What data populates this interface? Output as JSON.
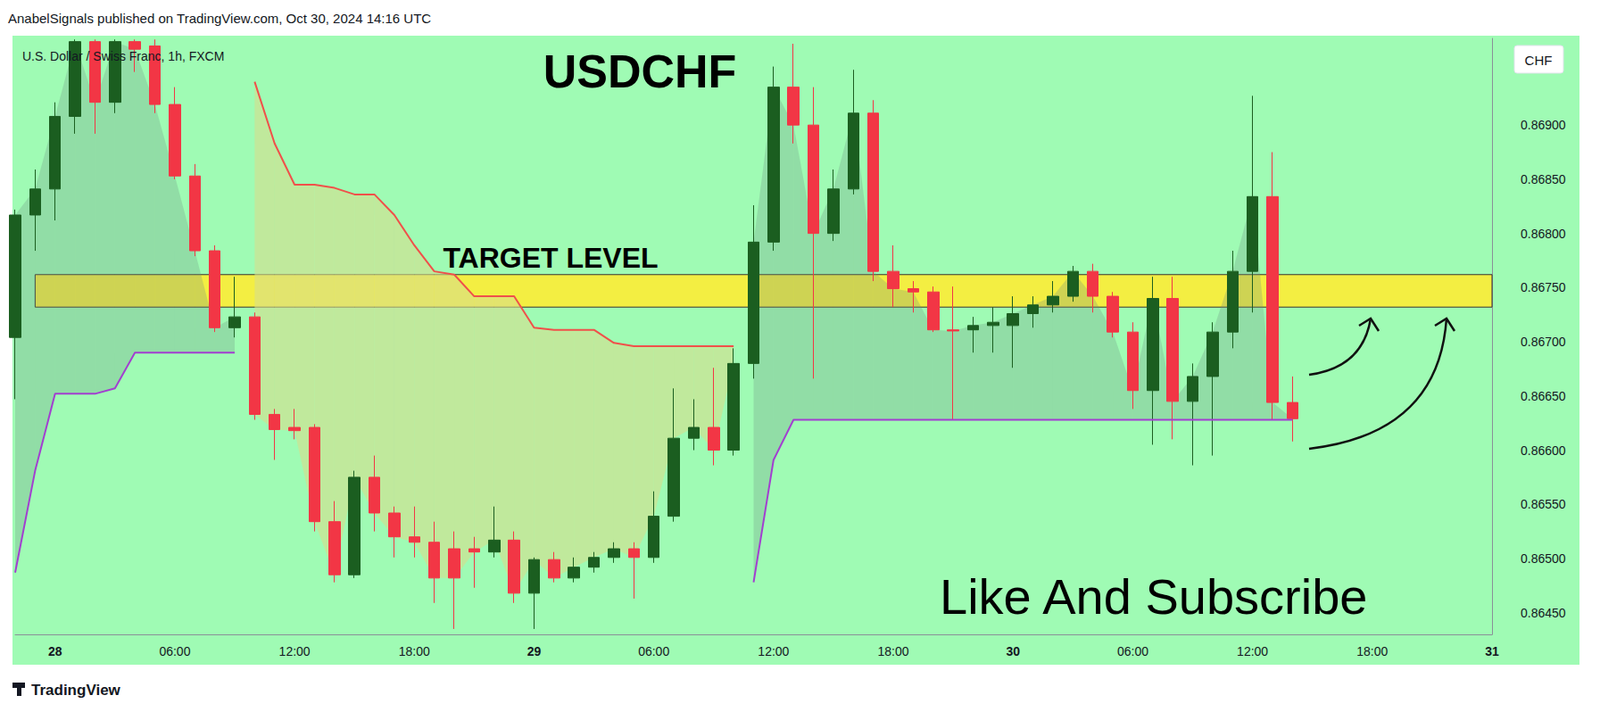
{
  "header": "AnabelSignals published on TradingView.com, Oct 30, 2024 14:16 UTC",
  "footer": "TradingView",
  "chart_data": {
    "type": "candlestick",
    "title": "USDCHF",
    "subtitle": "U.S. Dollar / Swiss Franc, 1h, FXCM",
    "currency": "CHF",
    "annotations": [
      "Like And Subscribe"
    ],
    "target_level": {
      "label": "TARGET LEVEL",
      "low": 0.86732,
      "high": 0.86762
    },
    "categories": [
      null,
      null,
      "28",
      null,
      null,
      null,
      null,
      null,
      "06:00",
      null,
      null,
      null,
      null,
      null,
      "12:00",
      null,
      null,
      null,
      null,
      null,
      "18:00",
      null,
      null,
      null,
      null,
      null,
      "29",
      null,
      null,
      null,
      null,
      null,
      "06:00",
      null,
      null,
      null,
      null,
      null,
      "12:00",
      null,
      null,
      null,
      null,
      null,
      "18:00",
      null,
      null,
      null,
      null,
      null,
      "30",
      null,
      null,
      null,
      null,
      null,
      "06:00",
      null,
      null,
      null,
      null,
      null,
      "12:00",
      null,
      null,
      null,
      null,
      null,
      "18:00",
      null,
      null,
      null,
      null,
      null,
      "31"
    ],
    "open": [
      0.86704,
      0.86817,
      0.86841,
      0.86908,
      0.86977,
      0.86921,
      0.86977,
      0.86973,
      0.86919,
      0.86853,
      0.86784,
      0.86713,
      0.86723,
      0.86633,
      0.86621,
      0.86621,
      0.86534,
      0.86485,
      0.86575,
      0.86542,
      0.8652,
      0.86515,
      0.86509,
      0.86509,
      0.86506,
      0.86517,
      0.86468,
      0.86499,
      0.86482,
      0.86492,
      0.86501,
      0.86509,
      0.86501,
      0.86539,
      0.86611,
      0.86621,
      0.866,
      0.8668,
      0.86792,
      0.86935,
      0.869,
      0.868,
      0.86841,
      0.86911,
      0.86765,
      0.86749,
      0.86746,
      0.86711,
      0.86711,
      0.86715,
      0.86715,
      0.86726,
      0.86734,
      0.86742,
      0.86765,
      0.86742,
      0.86709,
      0.86655,
      0.8674,
      0.86645,
      0.86668,
      0.86709,
      0.86765,
      0.86834,
      0.86644,
      null,
      null,
      null,
      null,
      null,
      null,
      null,
      null,
      null,
      null
    ],
    "close": [
      0.86817,
      0.86841,
      0.86908,
      0.86977,
      0.86921,
      0.86977,
      0.8697,
      0.86919,
      0.86853,
      0.86784,
      0.86713,
      0.86723,
      0.86633,
      0.86619,
      0.86618,
      0.86534,
      0.86485,
      0.86575,
      0.86542,
      0.8652,
      0.86515,
      0.86482,
      0.86482,
      0.86506,
      0.86517,
      0.86468,
      0.86499,
      0.86482,
      0.86492,
      0.86501,
      0.86509,
      0.86501,
      0.86539,
      0.86611,
      0.86621,
      0.866,
      0.8668,
      0.86792,
      0.86935,
      0.869,
      0.868,
      0.86841,
      0.86911,
      0.86765,
      0.86749,
      0.86746,
      0.86711,
      0.8671,
      0.86715,
      0.86718,
      0.86726,
      0.86734,
      0.86742,
      0.86765,
      0.86742,
      0.86709,
      0.86655,
      0.8674,
      0.86645,
      0.86668,
      0.86709,
      0.86765,
      0.86834,
      0.86644,
      0.86629,
      null,
      null,
      null,
      null,
      null,
      null,
      null,
      null,
      null,
      null
    ],
    "low": [
      0.86647,
      0.86784,
      0.86812,
      0.86892,
      0.86892,
      0.86911,
      0.86949,
      0.86911,
      0.8685,
      0.86779,
      0.86709,
      0.86704,
      0.86628,
      0.86591,
      0.8661,
      0.86525,
      0.86478,
      0.86482,
      0.86525,
      0.86501,
      0.86501,
      0.86459,
      0.86435,
      0.86473,
      0.86501,
      0.86459,
      0.86435,
      0.86478,
      0.86478,
      0.86487,
      0.86496,
      0.86463,
      0.86496,
      0.86534,
      0.866,
      0.86586,
      0.86595,
      0.86666,
      0.86784,
      0.86883,
      0.86666,
      0.86793,
      0.86836,
      0.86756,
      0.86732,
      0.86727,
      0.86709,
      0.86628,
      0.8669,
      0.8669,
      0.86676,
      0.86713,
      0.86727,
      0.86737,
      0.86727,
      0.86704,
      0.86638,
      0.86605,
      0.8661,
      0.86586,
      0.86595,
      0.86694,
      0.86727,
      0.86628,
      0.86608,
      null,
      null,
      null,
      null,
      null,
      null,
      null,
      null,
      null,
      null
    ],
    "high": [
      0.86822,
      0.86859,
      0.86921,
      0.86979,
      0.86979,
      0.86979,
      0.86979,
      0.86979,
      0.86935,
      0.86864,
      0.86789,
      0.8676,
      0.86727,
      0.86638,
      0.86638,
      0.86624,
      0.86553,
      0.86581,
      0.86595,
      0.86548,
      0.86548,
      0.86534,
      0.86525,
      0.8652,
      0.86548,
      0.86525,
      0.86501,
      0.86506,
      0.86501,
      0.86506,
      0.86515,
      0.86515,
      0.86562,
      0.86657,
      0.86647,
      0.86676,
      0.86694,
      0.86826,
      0.86954,
      0.86975,
      0.86935,
      0.86859,
      0.86951,
      0.86923,
      0.86789,
      0.86756,
      0.86751,
      0.86751,
      0.86723,
      0.86732,
      0.86742,
      0.86742,
      0.86756,
      0.8677,
      0.86772,
      0.86746,
      0.86718,
      0.8676,
      0.8676,
      0.8668,
      0.86718,
      0.86784,
      0.86927,
      0.86875,
      0.86668,
      null,
      null,
      null,
      null,
      null,
      null,
      null,
      null,
      null,
      null
    ],
    "up_color": "#1b5e20",
    "down_color": "#f23645",
    "overlays": [
      {
        "color": "#f0504a",
        "values": [
          null,
          null,
          null,
          null,
          null,
          null,
          null,
          null,
          null,
          null,
          null,
          null,
          0.8694,
          0.86883,
          0.86845,
          0.86845,
          0.86842,
          0.86836,
          0.86836,
          0.86817,
          0.86789,
          0.86765,
          0.86762,
          0.86742,
          0.86742,
          0.86742,
          0.86713,
          0.86711,
          0.86711,
          0.86711,
          0.86699,
          0.86696,
          0.86696,
          0.86696,
          0.86696,
          0.86696,
          0.86696,
          null,
          null,
          null,
          null,
          null,
          null,
          null,
          null,
          null,
          null,
          null,
          null,
          null,
          null,
          null,
          null,
          null,
          null,
          null,
          null,
          null,
          null,
          null,
          null,
          null,
          null,
          null,
          null,
          null,
          null,
          null,
          null,
          null,
          null,
          null,
          null,
          null,
          null
        ]
      },
      {
        "color": "#a23fd0",
        "values": [
          0.86487,
          0.86581,
          0.86652,
          0.86652,
          0.86652,
          0.86657,
          0.8669,
          0.8669,
          0.8669,
          0.8669,
          0.8669,
          0.8669,
          null,
          null,
          null,
          null,
          null,
          null,
          null,
          null,
          null,
          null,
          null,
          null,
          null,
          null,
          null,
          null,
          null,
          null,
          null,
          null,
          null,
          null,
          null,
          null,
          null,
          0.86478,
          0.86591,
          0.86628,
          0.86628,
          0.86628,
          0.86628,
          0.86628,
          0.86628,
          0.86628,
          0.86628,
          0.86628,
          0.86628,
          0.86628,
          0.86628,
          0.86628,
          0.86628,
          0.86628,
          0.86628,
          0.86628,
          0.86628,
          0.86628,
          0.86628,
          0.86628,
          0.86628,
          0.86628,
          0.86628,
          0.86628,
          0.86628,
          null,
          null,
          null,
          null,
          null,
          null,
          null,
          null,
          null,
          null
        ]
      }
    ],
    "ylim": [
      0.8643,
      0.8698
    ],
    "yticks": [
      {
        "value": 0.8645,
        "label": "0.86450"
      },
      {
        "value": 0.865,
        "label": "0.86500"
      },
      {
        "value": 0.8655,
        "label": "0.86550"
      },
      {
        "value": 0.866,
        "label": "0.86600"
      },
      {
        "value": 0.8665,
        "label": "0.86650"
      },
      {
        "value": 0.867,
        "label": "0.86700"
      },
      {
        "value": 0.8675,
        "label": "0.86750"
      },
      {
        "value": 0.868,
        "label": "0.86800"
      },
      {
        "value": 0.8685,
        "label": "0.86850"
      },
      {
        "value": 0.869,
        "label": "0.86900"
      }
    ],
    "grid": false
  }
}
